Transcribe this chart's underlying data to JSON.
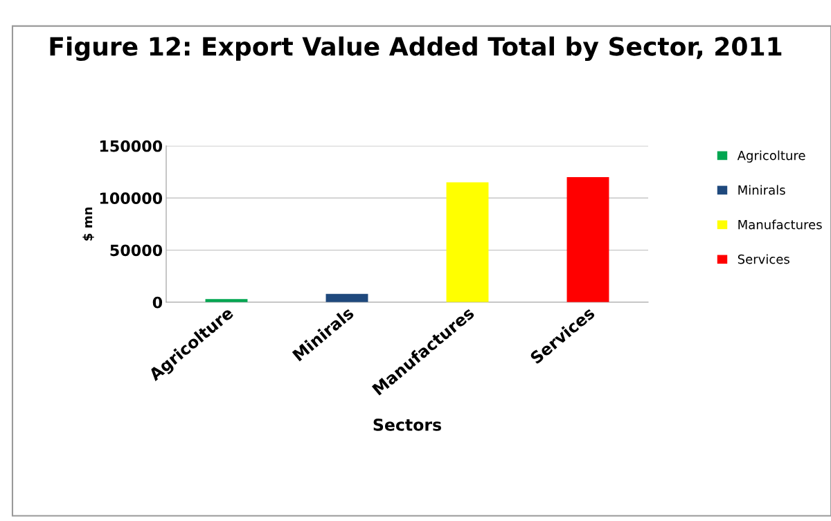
{
  "chart_data": {
    "type": "bar",
    "title": "Figure 12: Export Value Added Total by Sector, 2011",
    "xlabel": "Sectors",
    "ylabel": "$ mn",
    "categories": [
      "Agricolture",
      "Minirals",
      "Manufactures",
      "Services"
    ],
    "series": [
      {
        "name": "Agricolture",
        "color": "#00a651",
        "values": [
          3000,
          null,
          null,
          null
        ]
      },
      {
        "name": "Minirals",
        "color": "#1f497d",
        "values": [
          null,
          8000,
          null,
          null
        ]
      },
      {
        "name": "Manufactures",
        "color": "#ffff00",
        "values": [
          null,
          null,
          115000,
          null
        ]
      },
      {
        "name": "Services",
        "color": "#ff0000",
        "values": [
          null,
          null,
          null,
          120000
        ]
      }
    ],
    "ylim": [
      0,
      150000
    ],
    "yticks": [
      0,
      50000,
      100000,
      150000
    ],
    "grid": "y",
    "legend": "right"
  }
}
